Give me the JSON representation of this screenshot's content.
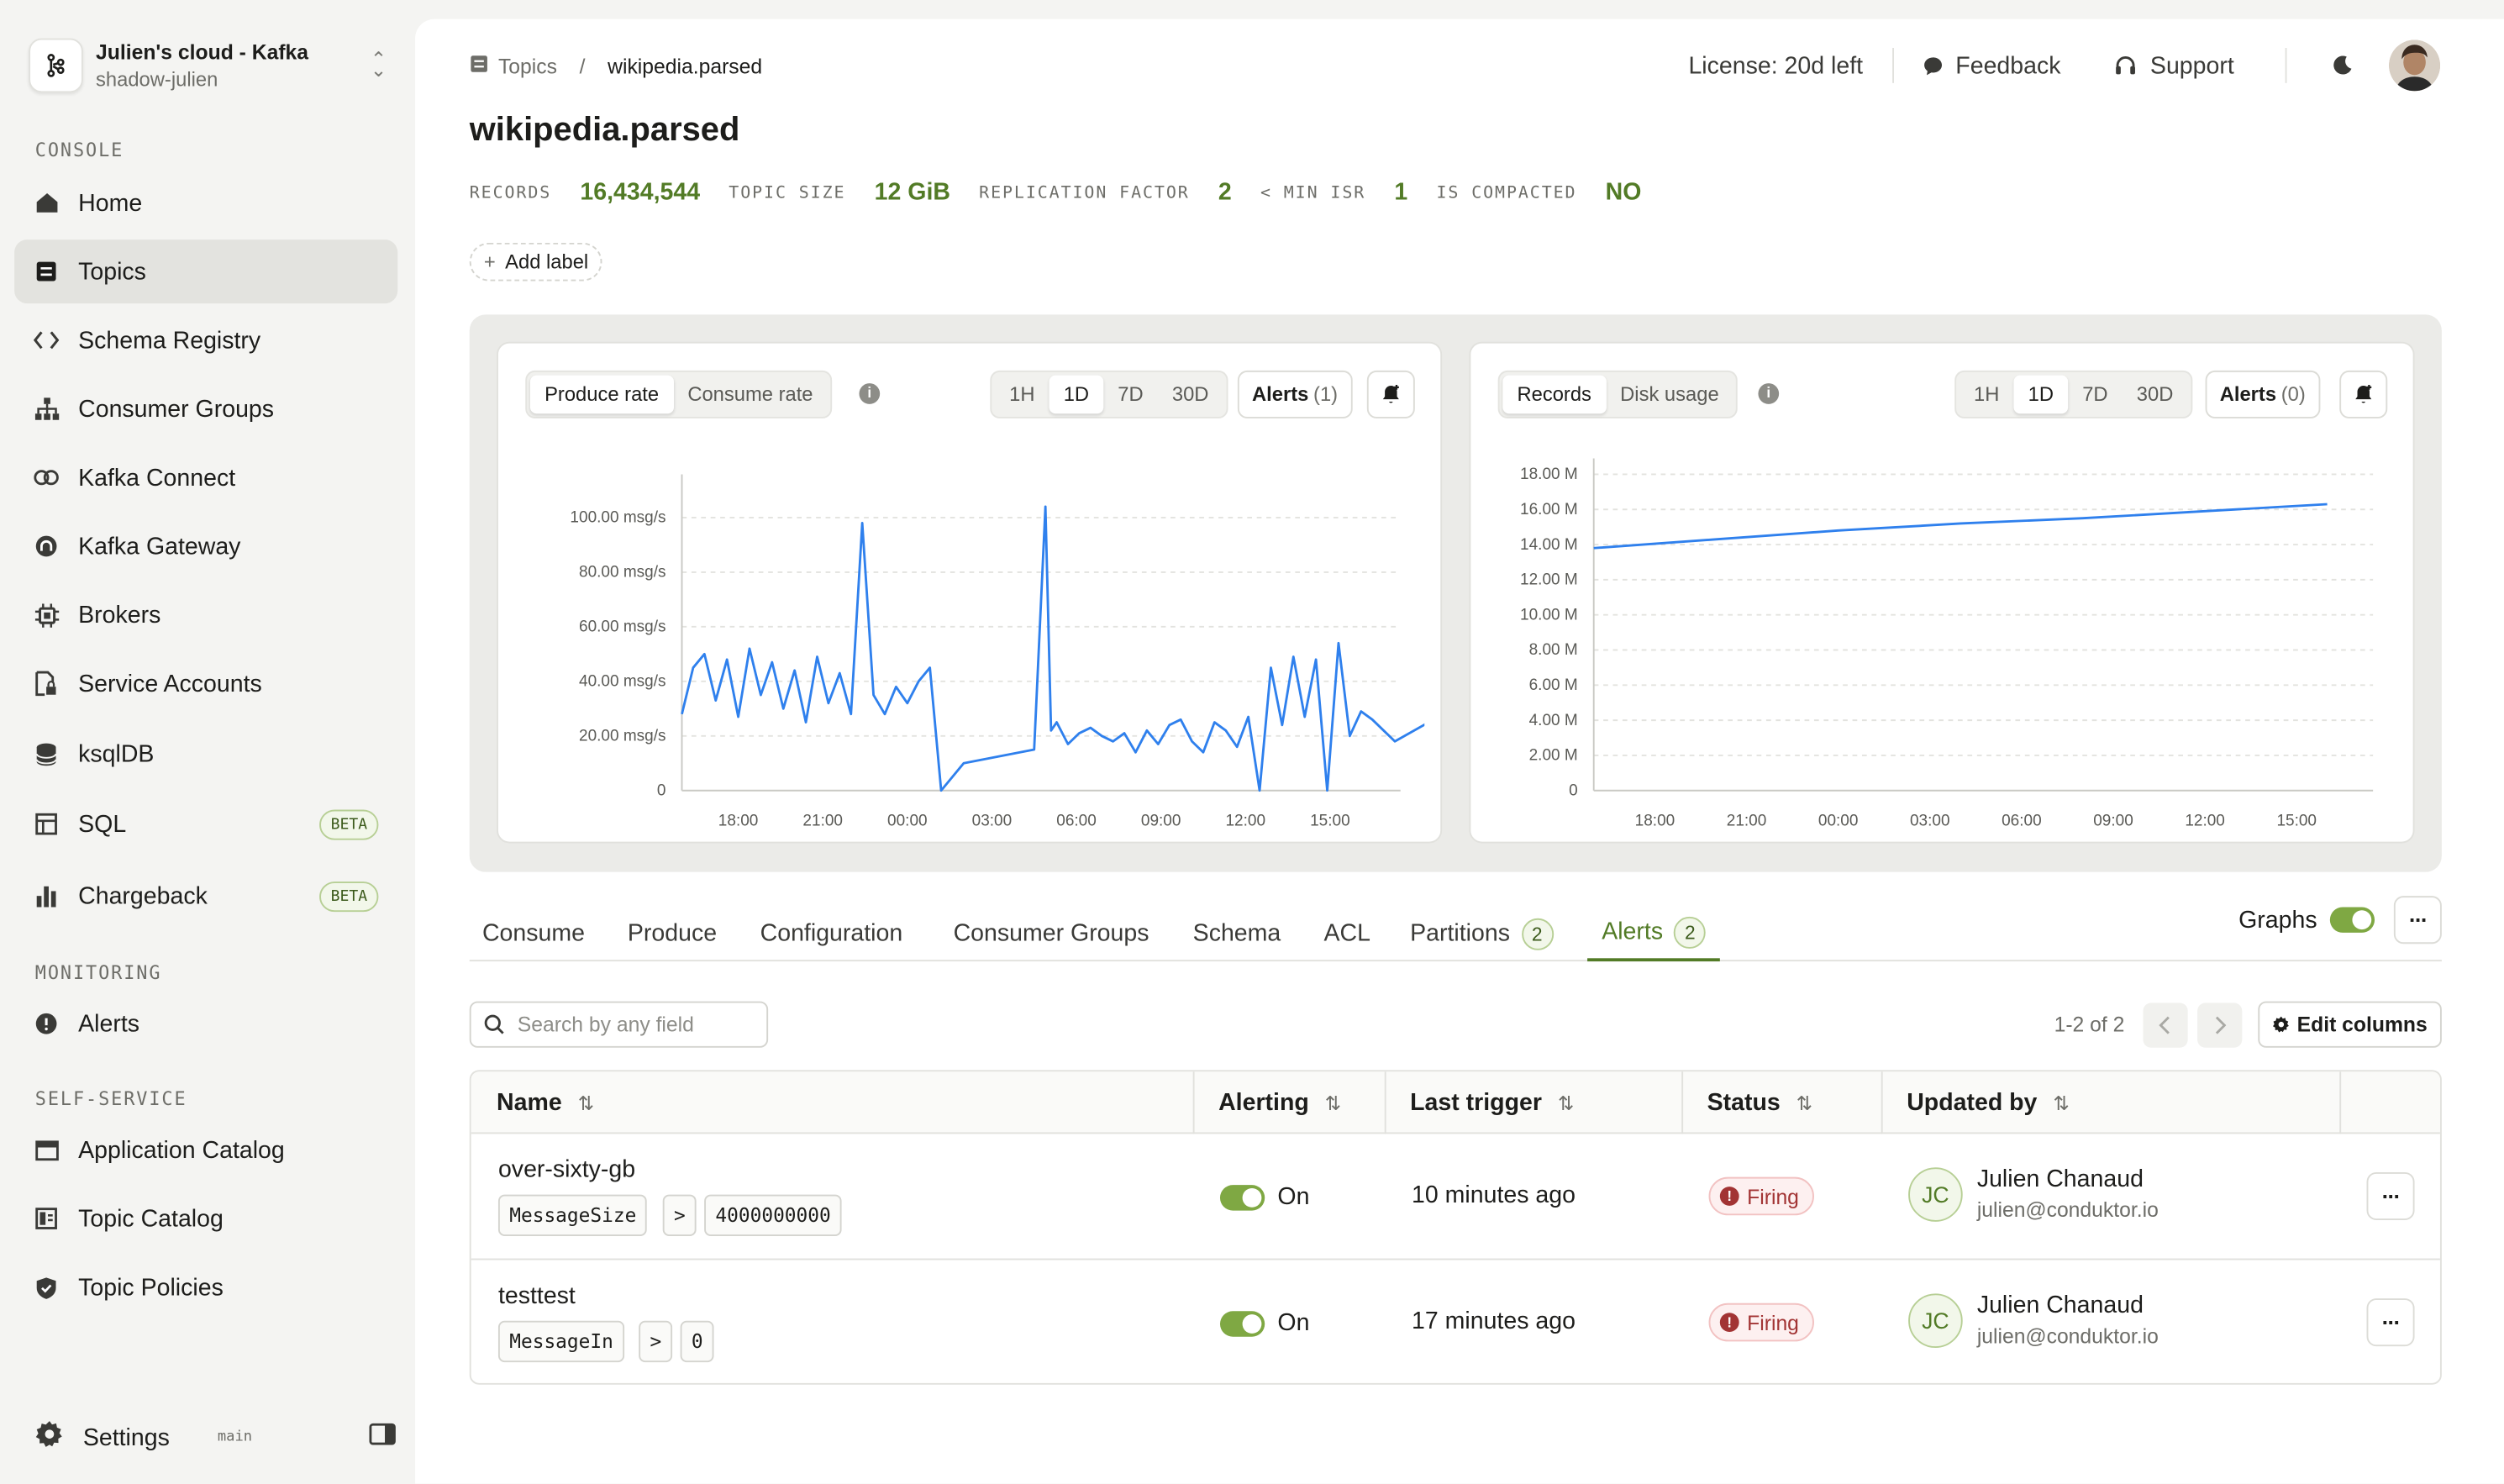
{
  "org": {
    "name": "Julien's cloud - Kafka",
    "sub": "shadow-julien"
  },
  "sidebar": {
    "console_label": "CONSOLE",
    "monitoring_label": "MONITORING",
    "selfservice_label": "SELF-SERVICE",
    "items": [
      {
        "label": "Home",
        "icon": "home-icon"
      },
      {
        "label": "Topics",
        "icon": "topics-icon",
        "active": true
      },
      {
        "label": "Schema Registry",
        "icon": "code-icon"
      },
      {
        "label": "Consumer Groups",
        "icon": "hierarchy-icon"
      },
      {
        "label": "Kafka Connect",
        "icon": "link-icon"
      },
      {
        "label": "Kafka Gateway",
        "icon": "gateway-icon"
      },
      {
        "label": "Brokers",
        "icon": "chip-icon"
      },
      {
        "label": "Service Accounts",
        "icon": "file-lock-icon"
      },
      {
        "label": "ksqlDB",
        "icon": "database-icon"
      },
      {
        "label": "SQL",
        "icon": "table-icon",
        "badge": "BETA"
      },
      {
        "label": "Chargeback",
        "icon": "bar-chart-icon",
        "badge": "BETA"
      },
      {
        "label": "Alerts",
        "icon": "alert-icon"
      },
      {
        "label": "Application Catalog",
        "icon": "window-icon"
      },
      {
        "label": "Topic Catalog",
        "icon": "catalog-icon"
      },
      {
        "label": "Topic Policies",
        "icon": "shield-icon"
      }
    ],
    "settings_label": "Settings",
    "branch": "main"
  },
  "topbar": {
    "crumb_parent": "Topics",
    "crumb_current": "wikipedia.parsed",
    "license": "License: 20d left",
    "feedback": "Feedback",
    "support": "Support"
  },
  "topic": {
    "title": "wikipedia.parsed",
    "stats": [
      {
        "label": "RECORDS",
        "value": "16,434,544"
      },
      {
        "label": "TOPIC SIZE",
        "value": "12 GiB"
      },
      {
        "label": "REPLICATION FACTOR",
        "value": "2"
      },
      {
        "label": "< MIN ISR",
        "value": "1"
      },
      {
        "label": "IS COMPACTED",
        "value": "NO"
      }
    ],
    "add_label": "Add label"
  },
  "charts": {
    "left": {
      "tabs": [
        "Produce rate",
        "Consume rate"
      ],
      "ranges": [
        "1H",
        "1D",
        "7D",
        "30D"
      ],
      "alerts_label": "Alerts",
      "alerts_count": "(1)"
    },
    "right": {
      "tabs": [
        "Records",
        "Disk usage"
      ],
      "ranges": [
        "1H",
        "1D",
        "7D",
        "30D"
      ],
      "alerts_label": "Alerts",
      "alerts_count": "(0)"
    },
    "accent": "#2f80ed"
  },
  "chart_data": [
    {
      "type": "line",
      "name": "Produce rate",
      "y_ticks": [
        "0",
        "20.00 msg/s",
        "40.00 msg/s",
        "60.00 msg/s",
        "80.00 msg/s",
        "100.00 msg/s"
      ],
      "x_ticks": [
        "18:00",
        "21:00",
        "00:00",
        "03:00",
        "06:00",
        "09:00",
        "12:00",
        "15:00"
      ],
      "ylim": [
        0,
        110
      ],
      "x_hours": [
        0,
        0.4,
        0.8,
        1.2,
        1.6,
        2.0,
        2.4,
        2.8,
        3.2,
        3.6,
        4.0,
        4.4,
        4.8,
        5.2,
        5.6,
        6.0,
        6.4,
        6.8,
        7.2,
        7.6,
        8.0,
        8.4,
        8.8,
        9.2,
        9.6,
        10.0,
        12.5,
        12.9,
        13.1,
        13.3,
        13.7,
        14.1,
        14.5,
        14.9,
        15.3,
        15.7,
        16.1,
        16.5,
        16.9,
        17.3,
        17.7,
        18.1,
        18.5,
        18.9,
        19.3,
        19.7,
        20.1,
        20.5,
        20.9,
        21.3,
        21.7,
        22.1,
        22.5,
        22.9,
        23.3,
        23.7,
        24.1,
        24.5
      ],
      "values": [
        28,
        45,
        50,
        33,
        48,
        27,
        52,
        35,
        47,
        30,
        44,
        25,
        49,
        32,
        43,
        28,
        98,
        35,
        28,
        38,
        32,
        40,
        45,
        0,
        5,
        10,
        15,
        104,
        22,
        25,
        17,
        21,
        23,
        20,
        18,
        21,
        14,
        22,
        17,
        24,
        26,
        18,
        14,
        25,
        22,
        16,
        27,
        0,
        45,
        24,
        49,
        27,
        48,
        0,
        54,
        20,
        29,
        26
      ],
      "line_end": 24.5,
      "extra": [
        [
          25.3,
          18
        ],
        [
          26.5,
          25
        ]
      ]
    },
    {
      "type": "line",
      "name": "Records",
      "y_ticks": [
        "0",
        "2.00 M",
        "4.00 M",
        "6.00 M",
        "8.00 M",
        "10.00 M",
        "12.00 M",
        "14.00 M",
        "16.00 M",
        "18.00 M"
      ],
      "x_ticks": [
        "18:00",
        "21:00",
        "00:00",
        "03:00",
        "06:00",
        "09:00",
        "12:00",
        "15:00"
      ],
      "ylim": [
        0,
        18
      ],
      "x_hours": [
        0,
        4,
        8,
        12,
        16,
        20,
        24
      ],
      "values": [
        13.8,
        14.3,
        14.8,
        15.2,
        15.5,
        15.9,
        16.3
      ]
    }
  ],
  "tabs": [
    {
      "label": "Consume"
    },
    {
      "label": "Produce"
    },
    {
      "label": "Configuration"
    },
    {
      "label": "Consumer Groups"
    },
    {
      "label": "Schema"
    },
    {
      "label": "ACL"
    },
    {
      "label": "Partitions",
      "badge": "2"
    },
    {
      "label": "Alerts",
      "badge": "2",
      "active": true
    }
  ],
  "graphs_label": "Graphs",
  "search": {
    "placeholder": "Search by any field"
  },
  "pager": {
    "text": "1-2 of 2",
    "edit_columns": "Edit columns"
  },
  "table": {
    "headers": [
      "Name",
      "Alerting",
      "Last trigger",
      "Status",
      "Updated by"
    ],
    "rows": [
      {
        "name": "over-sixty-gb",
        "metric": "MessageSize",
        "op": ">",
        "threshold": "4000000000",
        "alerting": "On",
        "last_trigger": "10 minutes ago",
        "status": "Firing",
        "initials": "JC",
        "user": "Julien Chanaud",
        "email": "julien@conduktor.io"
      },
      {
        "name": "testtest",
        "metric": "MessageIn",
        "op": ">",
        "threshold": "0",
        "alerting": "On",
        "last_trigger": "17 minutes ago",
        "status": "Firing",
        "initials": "JC",
        "user": "Julien Chanaud",
        "email": "julien@conduktor.io"
      }
    ]
  }
}
